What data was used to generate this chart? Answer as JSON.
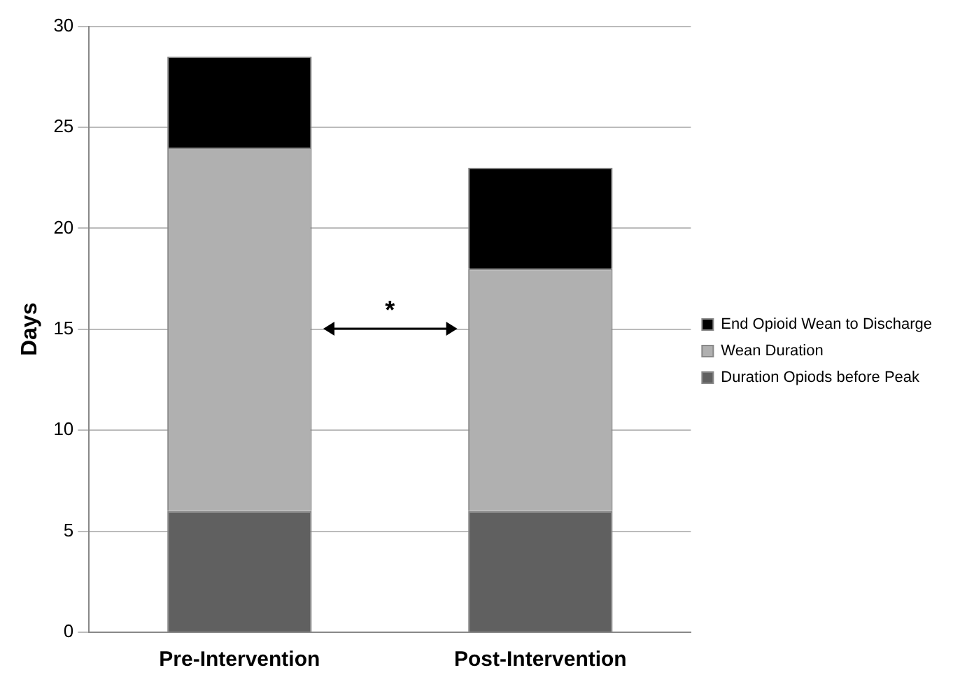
{
  "chart_data": {
    "type": "bar",
    "stacked": true,
    "ylabel": "Days",
    "categories": [
      "Pre-Intervention",
      "Post-Intervention"
    ],
    "series": [
      {
        "name": "Duration Opiods before Peak",
        "color": "#606060",
        "values": [
          6,
          6
        ]
      },
      {
        "name": "Wean Duration",
        "color": "#b0b0b0",
        "values": [
          18,
          12
        ]
      },
      {
        "name": "End Opioid Wean to Discharge",
        "color": "#000000",
        "values": [
          4.5,
          5
        ]
      }
    ],
    "ylim": [
      0,
      30
    ],
    "yticks": [
      0,
      5,
      10,
      15,
      20,
      25,
      30
    ],
    "grid": "y",
    "legend": "right",
    "annotations": [
      "*"
    ]
  }
}
